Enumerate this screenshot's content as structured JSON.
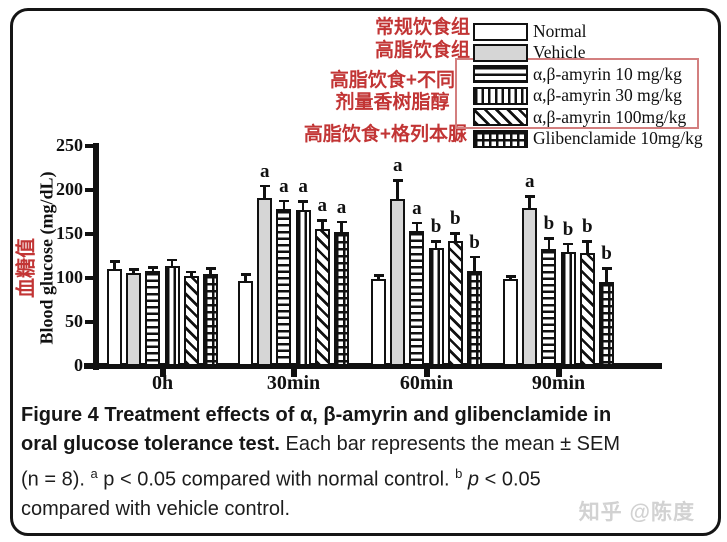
{
  "annotations": {
    "normal_diet": "常规饮食组",
    "high_fat_diet": "高脂饮食组",
    "amyrin_line1": "高脂饮食+不同",
    "amyrin_line2": "剂量香树脂醇",
    "glibenclamide_diet": "高脂饮食+格列本脲",
    "red_color": "#c23535"
  },
  "legend": {
    "items": [
      {
        "label": "Normal",
        "pattern": "plain"
      },
      {
        "label": "Vehicle",
        "pattern": "gray"
      },
      {
        "label": "α,β-amyrin 10 mg/kg",
        "pattern": "hlines"
      },
      {
        "label": "α,β-amyrin 30 mg/kg",
        "pattern": "vlines"
      },
      {
        "label": "α,β-amyrin 100mg/kg",
        "pattern": "diag"
      },
      {
        "label": "Glibenclamide 10mg/kg",
        "pattern": "grid"
      }
    ],
    "highlight_box_color": "#d37f7f"
  },
  "chart_data": {
    "type": "bar",
    "title": "",
    "xlabel": "",
    "ylabel": "Blood glucose (mg/dL)",
    "ylabel_cn": "血糖值",
    "ylim": [
      0,
      250
    ],
    "yticks": [
      0,
      50,
      100,
      150,
      200,
      250
    ],
    "categories": [
      "0h",
      "30min",
      "60min",
      "90min"
    ],
    "error_type": "SEM upper error bars",
    "series": [
      {
        "name": "Normal",
        "pattern": "plain",
        "values": [
          110,
          97,
          99,
          99
        ],
        "errors": [
          9,
          7,
          4,
          3
        ],
        "sig": [
          "",
          "",
          "",
          ""
        ]
      },
      {
        "name": "Vehicle",
        "pattern": "gray",
        "values": [
          106,
          191,
          190,
          179
        ],
        "errors": [
          4,
          14,
          21,
          14
        ],
        "sig": [
          "",
          "a",
          "a",
          "a"
        ]
      },
      {
        "name": "α,β-amyrin 10 mg/kg",
        "pattern": "hlines",
        "values": [
          108,
          178,
          153,
          133
        ],
        "errors": [
          4,
          10,
          10,
          12
        ],
        "sig": [
          "",
          "a",
          "a",
          "b"
        ]
      },
      {
        "name": "α,β-amyrin 30 mg/kg",
        "pattern": "vlines",
        "values": [
          114,
          177,
          134,
          129
        ],
        "errors": [
          7,
          10,
          8,
          10
        ],
        "sig": [
          "",
          "a",
          "b",
          "b"
        ]
      },
      {
        "name": "α,β-amyrin 100mg/kg",
        "pattern": "diag",
        "values": [
          102,
          156,
          142,
          128
        ],
        "errors": [
          5,
          10,
          9,
          14
        ],
        "sig": [
          "",
          "a",
          "b",
          "b"
        ]
      },
      {
        "name": "Glibenclamide 10mg/kg",
        "pattern": "grid",
        "values": [
          105,
          152,
          108,
          96
        ],
        "errors": [
          6,
          12,
          16,
          15
        ],
        "sig": [
          "",
          "a",
          "b",
          "b"
        ]
      }
    ]
  },
  "caption": {
    "lines": [
      {
        "segments": [
          {
            "t": "Figure 4 Treatment effects of α, β-amyrin and glibenclamide in",
            "b": true
          }
        ]
      },
      {
        "segments": [
          {
            "t": "oral glucose tolerance test.",
            "b": true
          },
          {
            "t": " Each bar represents the mean ± SEM"
          }
        ]
      },
      {
        "segments": [
          {
            "t": "(n = 8). "
          },
          {
            "t": "a",
            "sup": true
          },
          {
            "t": " p < 0.05 compared with normal control. "
          },
          {
            "t": "b",
            "sup": true
          },
          {
            "t": " "
          },
          {
            "t": "p",
            "i": true
          },
          {
            "t": " < 0.05"
          }
        ]
      },
      {
        "segments": [
          {
            "t": "compared with vehicle control."
          }
        ]
      }
    ]
  },
  "watermark": "知乎 @陈度"
}
